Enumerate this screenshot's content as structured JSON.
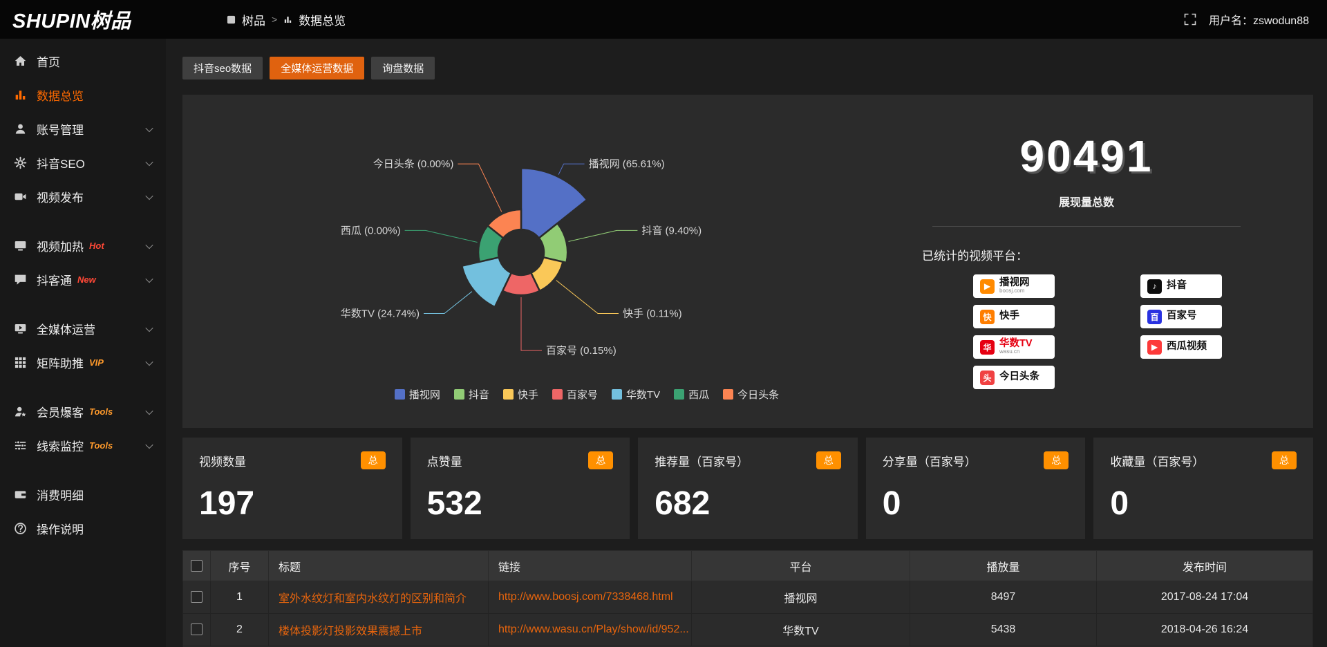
{
  "topbar": {
    "logo": "SHUPIN树品",
    "breadcrumb_root": "树品",
    "breadcrumb_sep": ">",
    "breadcrumb_current": "数据总览",
    "username": "用户名：zswodun88"
  },
  "sidebar": {
    "items": [
      {
        "label": "首页",
        "icon": "home"
      },
      {
        "label": "数据总览",
        "icon": "chart",
        "active": true
      },
      {
        "label": "账号管理",
        "icon": "user",
        "expandable": true
      },
      {
        "label": "抖音SEO",
        "icon": "gear",
        "expandable": true
      },
      {
        "label": "视频发布",
        "icon": "video",
        "expandable": true
      },
      {
        "label": "视频加热",
        "icon": "monitor",
        "badge": "Hot",
        "badge_color": "#ff4836",
        "expandable": true,
        "gap_before": true
      },
      {
        "label": "抖客通",
        "icon": "chat",
        "badge": "New",
        "badge_color": "#ff4836",
        "expandable": true
      },
      {
        "label": "全媒体运营",
        "icon": "screen",
        "expandable": true,
        "gap_before": true
      },
      {
        "label": "矩阵助推",
        "icon": "grid",
        "badge": "VIP",
        "badge_color": "#ff9a2b",
        "expandable": true
      },
      {
        "label": "会员爆客",
        "icon": "member",
        "badge": "Tools",
        "badge_color": "#ff9a2b",
        "expandable": true,
        "gap_before": true
      },
      {
        "label": "线索监控",
        "icon": "filter",
        "badge": "Tools",
        "badge_color": "#ff9a2b",
        "expandable": true
      },
      {
        "label": "消费明细",
        "icon": "wallet",
        "gap_before": true
      },
      {
        "label": "操作说明",
        "icon": "question"
      }
    ]
  },
  "tabs": [
    {
      "label": "抖音seo数据"
    },
    {
      "label": "全媒体运营数据",
      "active": true
    },
    {
      "label": "询盘数据"
    }
  ],
  "chart_data": {
    "type": "pie",
    "variant": "nightingale-rose",
    "legend_position": "bottom",
    "slices": [
      {
        "name": "播视网",
        "percent": 65.61,
        "color": "#5470c6"
      },
      {
        "name": "抖音",
        "percent": 9.4,
        "color": "#91cc75"
      },
      {
        "name": "快手",
        "percent": 0.11,
        "color": "#fac858"
      },
      {
        "name": "百家号",
        "percent": 0.15,
        "color": "#ee6666"
      },
      {
        "name": "华数TV",
        "percent": 24.74,
        "color": "#73c0de"
      },
      {
        "name": "西瓜",
        "percent": 0,
        "color": "#3ba272"
      },
      {
        "name": "今日头条",
        "percent": 0,
        "color": "#fc8452"
      }
    ]
  },
  "summary": {
    "total_value": "90491",
    "total_label": "展现量总数",
    "platforms_label": "已统计的视频平台：",
    "platforms": [
      {
        "name": "播视网",
        "sub": "boosj.com",
        "glyph": "▶",
        "color": "#ff8a00"
      },
      {
        "name": "抖音",
        "glyph": "♪",
        "color": "#0d0d0d"
      },
      {
        "name": "快手",
        "glyph": "快",
        "color": "#ff7e00"
      },
      {
        "name": "百家号",
        "glyph": "百",
        "color": "#2932e1"
      },
      {
        "name": "华数TV",
        "sub": "wasu.cn",
        "glyph": "华",
        "color": "#e60012",
        "name_color": "#e60012"
      },
      {
        "name": "西瓜视频",
        "glyph": "▶",
        "color": "#fd3a3a"
      },
      {
        "name": "今日头条",
        "glyph": "头",
        "color": "#f04142"
      }
    ]
  },
  "stat_cards": [
    {
      "title": "视频数量",
      "badge": "总",
      "value": "197"
    },
    {
      "title": "点赞量",
      "badge": "总",
      "value": "532"
    },
    {
      "title": "推荐量（百家号）",
      "badge": "总",
      "value": "682"
    },
    {
      "title": "分享量（百家号）",
      "badge": "总",
      "value": "0"
    },
    {
      "title": "收藏量（百家号）",
      "badge": "总",
      "value": "0"
    }
  ],
  "table": {
    "headers": [
      "序号",
      "标题",
      "链接",
      "平台",
      "播放量",
      "发布时间"
    ],
    "rows": [
      {
        "index": "1",
        "title": "室外水纹灯和室内水纹灯的区别和简介",
        "link": "http://www.boosj.com/7338468.html",
        "platform": "播视网",
        "plays": "8497",
        "time": "2017-08-24 17:04"
      },
      {
        "index": "2",
        "title": "楼体投影灯投影效果震撼上市",
        "link": "http://www.wasu.cn/Play/show/id/952...",
        "platform": "华数TV",
        "plays": "5438",
        "time": "2018-04-26 16:24"
      }
    ]
  },
  "colors": {
    "accent": "#e8650d",
    "active_tab": "#e0620f",
    "badge_orange": "#ff9000",
    "sidebar_active": "#ff6a00",
    "panel": "#2b2b2b",
    "background": "#1d1d1d",
    "topbar": "#060606"
  }
}
